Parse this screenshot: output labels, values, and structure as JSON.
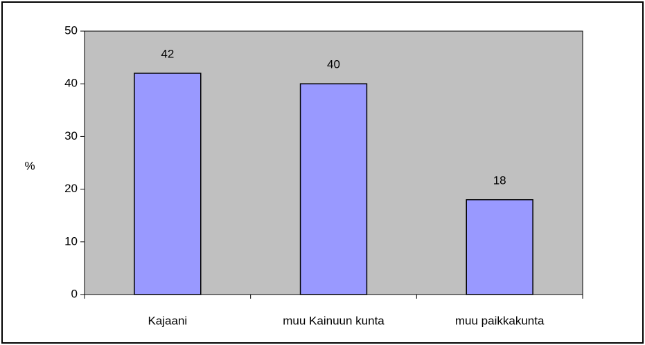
{
  "chart_data": {
    "type": "bar",
    "y_label": "%",
    "categories": [
      "Kajaani",
      "muu Kainuun kunta",
      "muu paikkakunta"
    ],
    "values": [
      42,
      40,
      18
    ],
    "color": "#9999ff",
    "plot_background": "#c0c0c0",
    "ylim": [
      0,
      50
    ],
    "yticks": [
      0,
      10,
      20,
      30,
      40,
      50
    ],
    "grid": false,
    "data_labels": true
  }
}
